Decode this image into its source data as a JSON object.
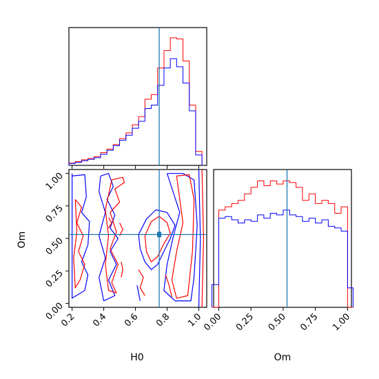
{
  "chart_data": {
    "type": "corner",
    "colors": {
      "series_a": "#ff0000",
      "series_b": "#0000ff",
      "truth": "#1f77b4"
    },
    "grid": false,
    "legend": "none",
    "truth": {
      "H0": 0.75,
      "Om": 0.53
    },
    "panels": [
      {
        "id": "H0-marginal",
        "type": "histogram",
        "xlim": [
          0.18,
          1.05
        ],
        "yticks": "none",
        "bin_edges": [
          0.18,
          0.22,
          0.26,
          0.3,
          0.34,
          0.38,
          0.42,
          0.46,
          0.5,
          0.54,
          0.58,
          0.62,
          0.66,
          0.7,
          0.74,
          0.78,
          0.82,
          0.86,
          0.9,
          0.94,
          0.98,
          1.02
        ],
        "series": [
          {
            "color": "red",
            "counts": [
              1.0,
              1.6,
              2.4,
              3.0,
              3.8,
              5.5,
              7.0,
              9.0,
              11.5,
              14.0,
              17.5,
              21.0,
              28.5,
              30.5,
              42.0,
              49.5,
              55.0,
              54.5,
              45.0,
              26.0,
              6.0
            ]
          },
          {
            "color": "blue",
            "counts": [
              0.8,
              1.3,
              2.0,
              2.6,
              3.3,
              4.8,
              6.5,
              8.5,
              10.8,
              13.0,
              16.0,
              19.0,
              24.5,
              26.0,
              34.5,
              42.0,
              46.0,
              42.5,
              35.5,
              23.5,
              4.5
            ]
          }
        ]
      },
      {
        "id": "Om-vs-H0-contours",
        "type": "contour",
        "xlabel": "H0",
        "ylabel": "Om",
        "xlim": [
          0.18,
          1.05
        ],
        "ylim": [
          -0.03,
          1.03
        ],
        "xticks": [
          "0.2",
          "0.4",
          "0.6",
          "0.8",
          "1.0"
        ],
        "yticks": [
          "0.00",
          "0.25",
          "0.50",
          "0.75",
          "1.00"
        ],
        "contours": [
          {
            "color": "blue",
            "points": [
              [
                0.2,
                0.98
              ],
              [
                0.28,
                0.99
              ],
              [
                0.29,
                0.82
              ],
              [
                0.26,
                0.7
              ],
              [
                0.31,
                0.63
              ],
              [
                0.3,
                0.45
              ],
              [
                0.26,
                0.32
              ],
              [
                0.3,
                0.22
              ],
              [
                0.28,
                0.1
              ],
              [
                0.2,
                0.04
              ],
              [
                0.2,
                1.0
              ]
            ]
          },
          {
            "color": "red",
            "points": [
              [
                0.22,
                0.8
              ],
              [
                0.26,
                0.74
              ],
              [
                0.23,
                0.62
              ],
              [
                0.27,
                0.52
              ],
              [
                0.24,
                0.4
              ],
              [
                0.28,
                0.3
              ],
              [
                0.25,
                0.18
              ],
              [
                0.22,
                0.12
              ],
              [
                0.21,
                0.35
              ],
              [
                0.23,
                0.55
              ],
              [
                0.22,
                0.8
              ]
            ]
          },
          {
            "color": "blue",
            "points": [
              [
                0.38,
                0.98
              ],
              [
                0.43,
                1.0
              ],
              [
                0.46,
                0.9
              ],
              [
                0.42,
                0.8
              ],
              [
                0.47,
                0.68
              ],
              [
                0.44,
                0.58
              ],
              [
                0.49,
                0.5
              ],
              [
                0.44,
                0.4
              ],
              [
                0.48,
                0.3
              ],
              [
                0.43,
                0.18
              ],
              [
                0.47,
                0.06
              ],
              [
                0.4,
                0.02
              ],
              [
                0.37,
                0.2
              ],
              [
                0.41,
                0.35
              ],
              [
                0.37,
                0.52
              ],
              [
                0.41,
                0.7
              ],
              [
                0.37,
                0.86
              ],
              [
                0.38,
                0.98
              ]
            ]
          },
          {
            "color": "red",
            "points": [
              [
                0.45,
                0.95
              ],
              [
                0.52,
                0.97
              ],
              [
                0.53,
                0.93
              ],
              [
                0.47,
                0.88
              ],
              [
                0.5,
                0.78
              ],
              [
                0.44,
                0.7
              ],
              [
                0.48,
                0.55
              ],
              [
                0.44,
                0.42
              ],
              [
                0.49,
                0.3
              ],
              [
                0.45,
                0.16
              ],
              [
                0.48,
                0.08
              ],
              [
                0.43,
                0.1
              ],
              [
                0.41,
                0.3
              ],
              [
                0.43,
                0.52
              ],
              [
                0.41,
                0.72
              ],
              [
                0.45,
                0.95
              ]
            ]
          },
          {
            "color": "red",
            "points": [
              [
                0.5,
                0.62
              ],
              [
                0.52,
                0.57
              ],
              [
                0.5,
                0.52
              ]
            ]
          },
          {
            "color": "red",
            "points": [
              [
                0.51,
                0.32
              ],
              [
                0.52,
                0.26
              ],
              [
                0.51,
                0.2
              ]
            ]
          },
          {
            "color": "red",
            "points": [
              [
                0.43,
                0.66
              ],
              [
                0.45,
                0.62
              ],
              [
                0.43,
                0.58
              ]
            ]
          },
          {
            "color": "blue",
            "points": [
              [
                0.62,
                0.53
              ],
              [
                0.67,
                0.65
              ],
              [
                0.73,
                0.72
              ],
              [
                0.8,
                0.7
              ],
              [
                0.85,
                0.6
              ],
              [
                0.82,
                0.5
              ],
              [
                0.78,
                0.4
              ],
              [
                0.74,
                0.3
              ],
              [
                0.7,
                0.26
              ],
              [
                0.66,
                0.32
              ],
              [
                0.63,
                0.42
              ],
              [
                0.62,
                0.53
              ]
            ]
          },
          {
            "color": "red",
            "points": [
              [
                0.66,
                0.52
              ],
              [
                0.7,
                0.63
              ],
              [
                0.75,
                0.67
              ],
              [
                0.8,
                0.62
              ],
              [
                0.82,
                0.54
              ],
              [
                0.78,
                0.46
              ],
              [
                0.74,
                0.36
              ],
              [
                0.7,
                0.32
              ],
              [
                0.67,
                0.4
              ],
              [
                0.66,
                0.52
              ]
            ]
          },
          {
            "color": "blue",
            "points": [
              [
                0.8,
                1.0
              ],
              [
                0.9,
                1.0
              ],
              [
                0.97,
                0.95
              ],
              [
                0.99,
                0.6
              ],
              [
                0.97,
                0.2
              ],
              [
                0.95,
                0.02
              ],
              [
                0.85,
                0.02
              ],
              [
                0.78,
                0.1
              ],
              [
                0.8,
                0.3
              ],
              [
                0.84,
                0.52
              ],
              [
                0.88,
                0.7
              ],
              [
                0.84,
                0.85
              ],
              [
                0.8,
                1.0
              ]
            ]
          },
          {
            "color": "red",
            "points": [
              [
                0.86,
                0.98
              ],
              [
                0.94,
                0.99
              ],
              [
                0.97,
                0.8
              ],
              [
                0.96,
                0.4
              ],
              [
                0.93,
                0.06
              ],
              [
                0.86,
                0.04
              ],
              [
                0.83,
                0.18
              ],
              [
                0.86,
                0.4
              ],
              [
                0.9,
                0.62
              ],
              [
                0.88,
                0.8
              ],
              [
                0.86,
                0.98
              ]
            ]
          },
          {
            "color": "blue",
            "points": [
              [
                1.0,
                1.03
              ],
              [
                1.01,
                0.5
              ],
              [
                1.0,
                -0.03
              ]
            ]
          },
          {
            "color": "red",
            "points": [
              [
                1.02,
                1.03
              ],
              [
                1.03,
                0.5
              ],
              [
                1.02,
                -0.03
              ]
            ]
          },
          {
            "color": "red",
            "points": [
              [
                0.79,
                0.22
              ],
              [
                0.81,
                0.15
              ],
              [
                0.83,
                0.05
              ]
            ]
          },
          {
            "color": "red",
            "points": [
              [
                0.62,
                0.26
              ],
              [
                0.65,
                0.2
              ],
              [
                0.63,
                0.12
              ],
              [
                0.66,
                0.06
              ]
            ]
          },
          {
            "color": "blue",
            "points": [
              [
                0.61,
                0.14
              ],
              [
                0.63,
                0.02
              ]
            ]
          }
        ]
      },
      {
        "id": "Om-marginal",
        "type": "histogram",
        "xlabel": "Om",
        "xlim": [
          -0.04,
          1.03
        ],
        "xticks": [
          "0.00",
          "0.25",
          "0.50",
          "0.75",
          "1.00"
        ],
        "yticks": "none",
        "bin_edges": [
          0.0,
          0.05,
          0.1,
          0.15,
          0.2,
          0.25,
          0.3,
          0.35,
          0.4,
          0.45,
          0.5,
          0.55,
          0.6,
          0.65,
          0.7,
          0.75,
          0.8,
          0.85,
          0.9,
          0.95,
          1.0
        ],
        "series": [
          {
            "color": "red",
            "counts": [
              60,
              62,
              64,
              66,
              70,
              74,
              78,
              75,
              78,
              76,
              78,
              77,
              74,
              66,
              70,
              64,
              66,
              64,
              58,
              62
            ]
          },
          {
            "color": "blue",
            "counts": [
              55,
              56,
              54,
              52,
              54,
              53,
              57,
              55,
              58,
              57,
              60,
              57,
              56,
              53,
              55,
              52,
              54,
              50,
              49,
              47
            ]
          }
        ],
        "edge_values": {
          "red_left": 0,
          "blue_left": 14,
          "red_right": 0,
          "blue_right": 12
        }
      }
    ]
  }
}
